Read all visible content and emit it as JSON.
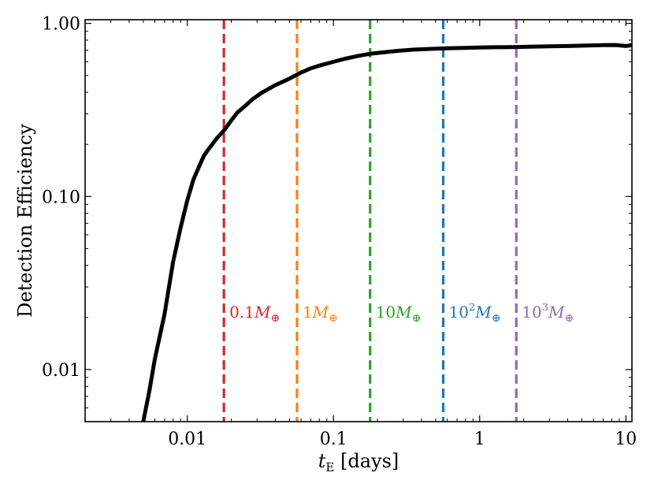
{
  "chart_data": {
    "type": "line",
    "xlabel_main": "t",
    "xlabel_sub": "E",
    "xlabel_unit": " [days]",
    "ylabel": "Detection Efficiency",
    "xscale": "log",
    "yscale": "log",
    "xlim": [
      0.002,
      11
    ],
    "ylim": [
      0.005,
      1.05
    ],
    "x_ticks": [
      {
        "value": 0.01,
        "label": "0.01"
      },
      {
        "value": 0.1,
        "label": "0.1"
      },
      {
        "value": 1,
        "label": "1"
      },
      {
        "value": 10,
        "label": "10"
      }
    ],
    "y_ticks": [
      {
        "value": 0.01,
        "label": "0.01"
      },
      {
        "value": 0.1,
        "label": "0.10"
      },
      {
        "value": 1,
        "label": "1.00"
      }
    ],
    "series": [
      {
        "name": "detection-efficiency",
        "color": "#000000",
        "x": [
          0.005,
          0.0055,
          0.006,
          0.007,
          0.008,
          0.009,
          0.01,
          0.011,
          0.012,
          0.013,
          0.014,
          0.015,
          0.016,
          0.018,
          0.02,
          0.022,
          0.025,
          0.028,
          0.032,
          0.036,
          0.04,
          0.045,
          0.05,
          0.06,
          0.07,
          0.08,
          0.1,
          0.12,
          0.15,
          0.18,
          0.22,
          0.28,
          0.35,
          0.45,
          0.6,
          0.8,
          1.0,
          1.3,
          1.7,
          2.2,
          3.0,
          4.0,
          5.5,
          7.0,
          8.5,
          10.0,
          11.0
        ],
        "y": [
          0.005,
          0.0075,
          0.0115,
          0.021,
          0.042,
          0.066,
          0.095,
          0.125,
          0.148,
          0.172,
          0.188,
          0.203,
          0.218,
          0.243,
          0.275,
          0.305,
          0.335,
          0.365,
          0.395,
          0.418,
          0.44,
          0.46,
          0.48,
          0.52,
          0.55,
          0.57,
          0.6,
          0.625,
          0.65,
          0.668,
          0.68,
          0.695,
          0.705,
          0.712,
          0.718,
          0.722,
          0.725,
          0.728,
          0.73,
          0.733,
          0.737,
          0.74,
          0.745,
          0.748,
          0.75,
          0.74,
          0.748
        ]
      }
    ],
    "vlines": [
      {
        "x": 0.0178,
        "color": "#d62728",
        "label_num": "0.1",
        "label_sym": "M",
        "label_sup": ""
      },
      {
        "x": 0.0563,
        "color": "#ff7f0e",
        "label_num": "1",
        "label_sym": "M",
        "label_sup": ""
      },
      {
        "x": 0.178,
        "color": "#2ca02c",
        "label_num": "10",
        "label_sym": "M",
        "label_sup": ""
      },
      {
        "x": 0.563,
        "color": "#1f77b4",
        "label_num": "10",
        "label_sym": "M",
        "label_sup": "2"
      },
      {
        "x": 1.78,
        "color": "#9467bd",
        "label_num": "10",
        "label_sym": "M",
        "label_sup": "3"
      }
    ],
    "vline_label_y": 0.0215,
    "earth_symbol": "⊕"
  }
}
